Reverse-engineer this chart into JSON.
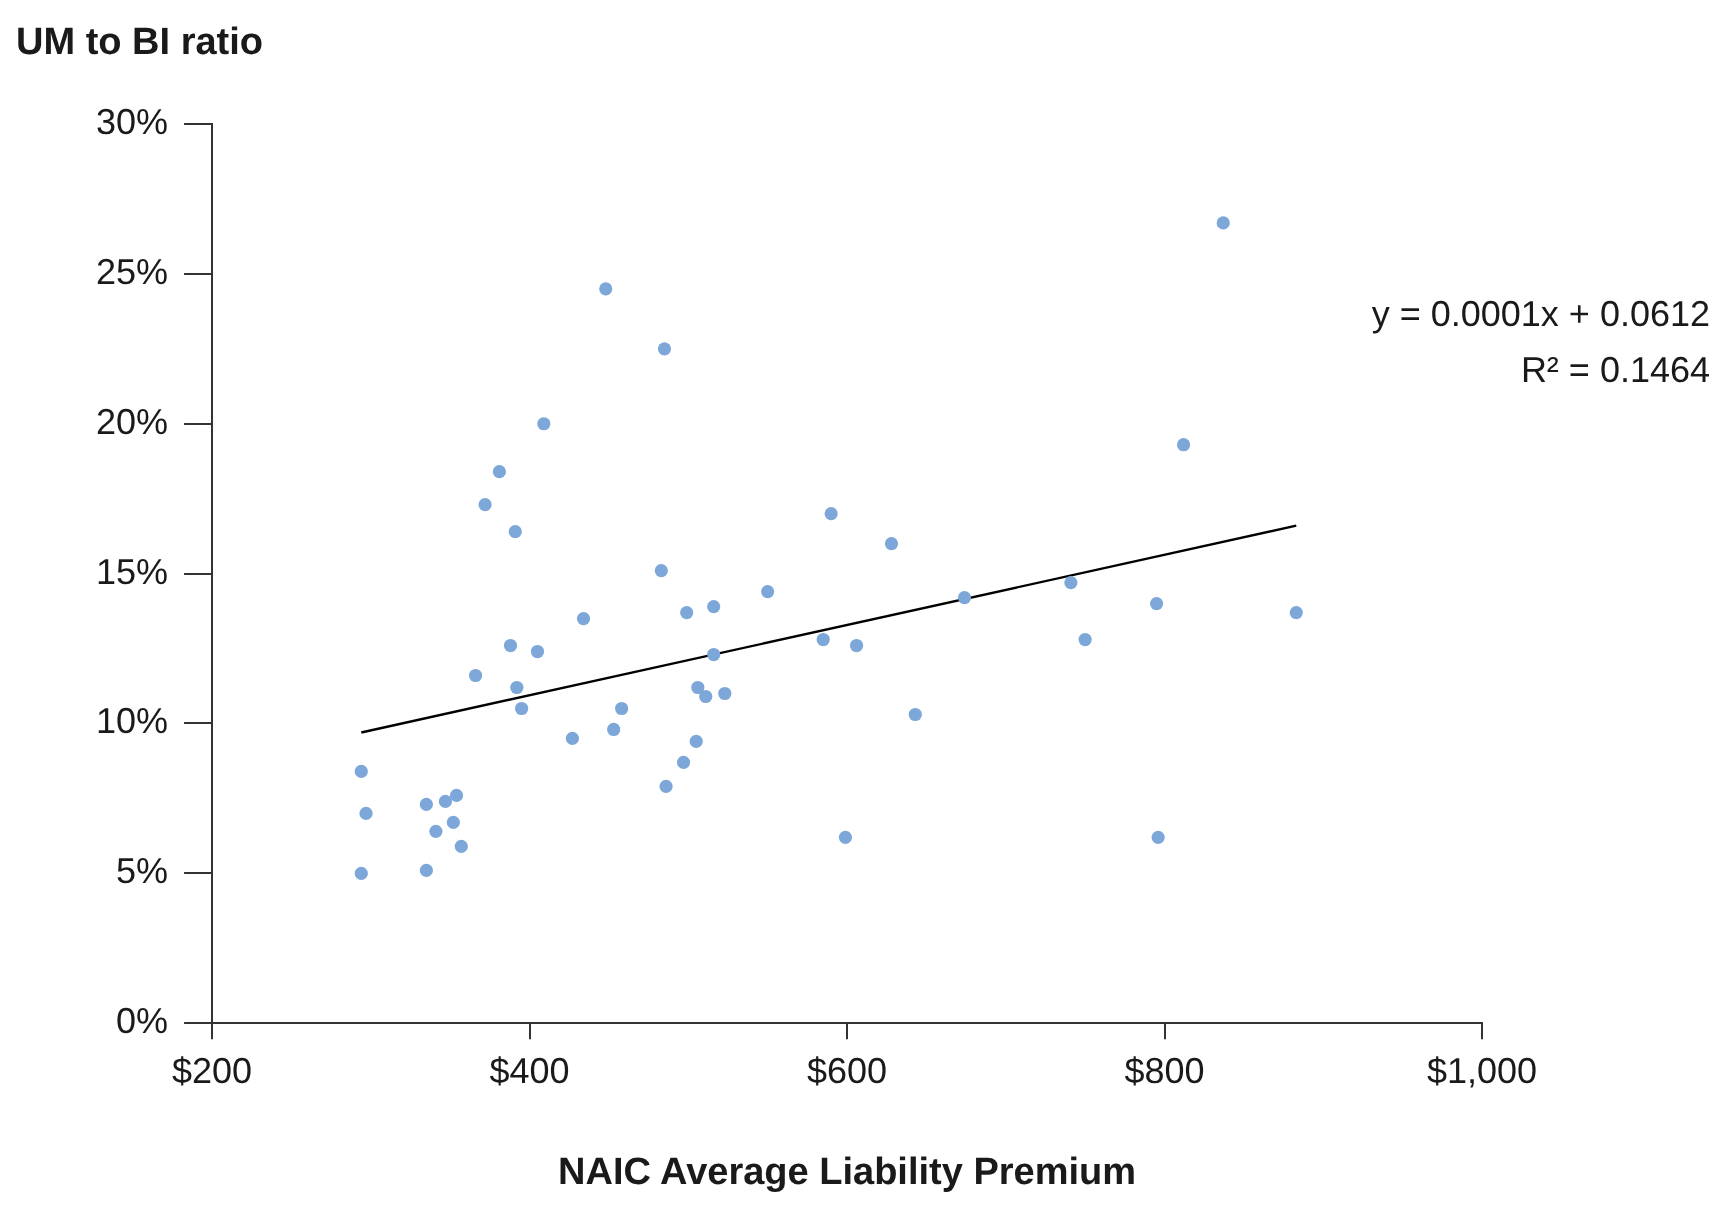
{
  "chart_data": {
    "type": "scatter",
    "xlabel": "NAIC Average Liability Premium",
    "ylabel": "UM to BI ratio",
    "xlim": [
      200,
      1000
    ],
    "xticks": [
      {
        "value": 200,
        "label": "$200"
      },
      {
        "value": 400,
        "label": "$400"
      },
      {
        "value": 600,
        "label": "$600"
      },
      {
        "value": 800,
        "label": "$800"
      },
      {
        "value": 1000,
        "label": "$1,000"
      }
    ],
    "ylim": [
      0,
      30
    ],
    "yticks": [
      {
        "value": 0,
        "label": "0%"
      },
      {
        "value": 5,
        "label": "5%"
      },
      {
        "value": 10,
        "label": "10%"
      },
      {
        "value": 15,
        "label": "15%"
      },
      {
        "value": 20,
        "label": "20%"
      },
      {
        "value": 25,
        "label": "25%"
      },
      {
        "value": 30,
        "label": "30%"
      }
    ],
    "grid": false,
    "legend": false,
    "marker": "circle",
    "annotations": [
      "y = 0.0001x + 0.0612",
      "R² = 0.1464"
    ],
    "series": [
      {
        "color": "#7da7d9",
        "x": [
          294,
          297,
          294,
          335,
          335,
          341,
          347,
          354,
          352,
          357,
          366,
          372,
          381,
          388,
          391,
          392,
          395,
          405,
          409,
          427,
          434,
          448,
          453,
          458,
          483,
          485,
          486,
          497,
          499,
          505,
          506,
          511,
          516,
          516,
          523,
          550,
          585,
          590,
          599,
          606,
          628,
          643,
          674,
          741,
          750,
          795,
          796,
          812,
          837,
          883
        ],
        "values": [
          8.4,
          7.0,
          5.0,
          7.3,
          5.1,
          6.4,
          7.4,
          7.6,
          6.7,
          5.9,
          11.6,
          17.3,
          18.4,
          12.6,
          16.4,
          11.2,
          10.5,
          12.4,
          20.0,
          9.5,
          13.5,
          24.5,
          9.8,
          10.5,
          15.1,
          22.5,
          7.9,
          8.7,
          13.7,
          9.4,
          11.2,
          10.9,
          13.9,
          12.3,
          11.0,
          14.4,
          12.8,
          17.0,
          6.2,
          12.6,
          16.0,
          10.3,
          14.2,
          14.7,
          12.8,
          14.0,
          6.2,
          19.3,
          26.7,
          13.7
        ]
      },
      {
        "type": "line",
        "marker": "none",
        "color": "#000000",
        "x": [
          294,
          883
        ],
        "values": [
          9.7,
          16.6
        ]
      }
    ]
  }
}
